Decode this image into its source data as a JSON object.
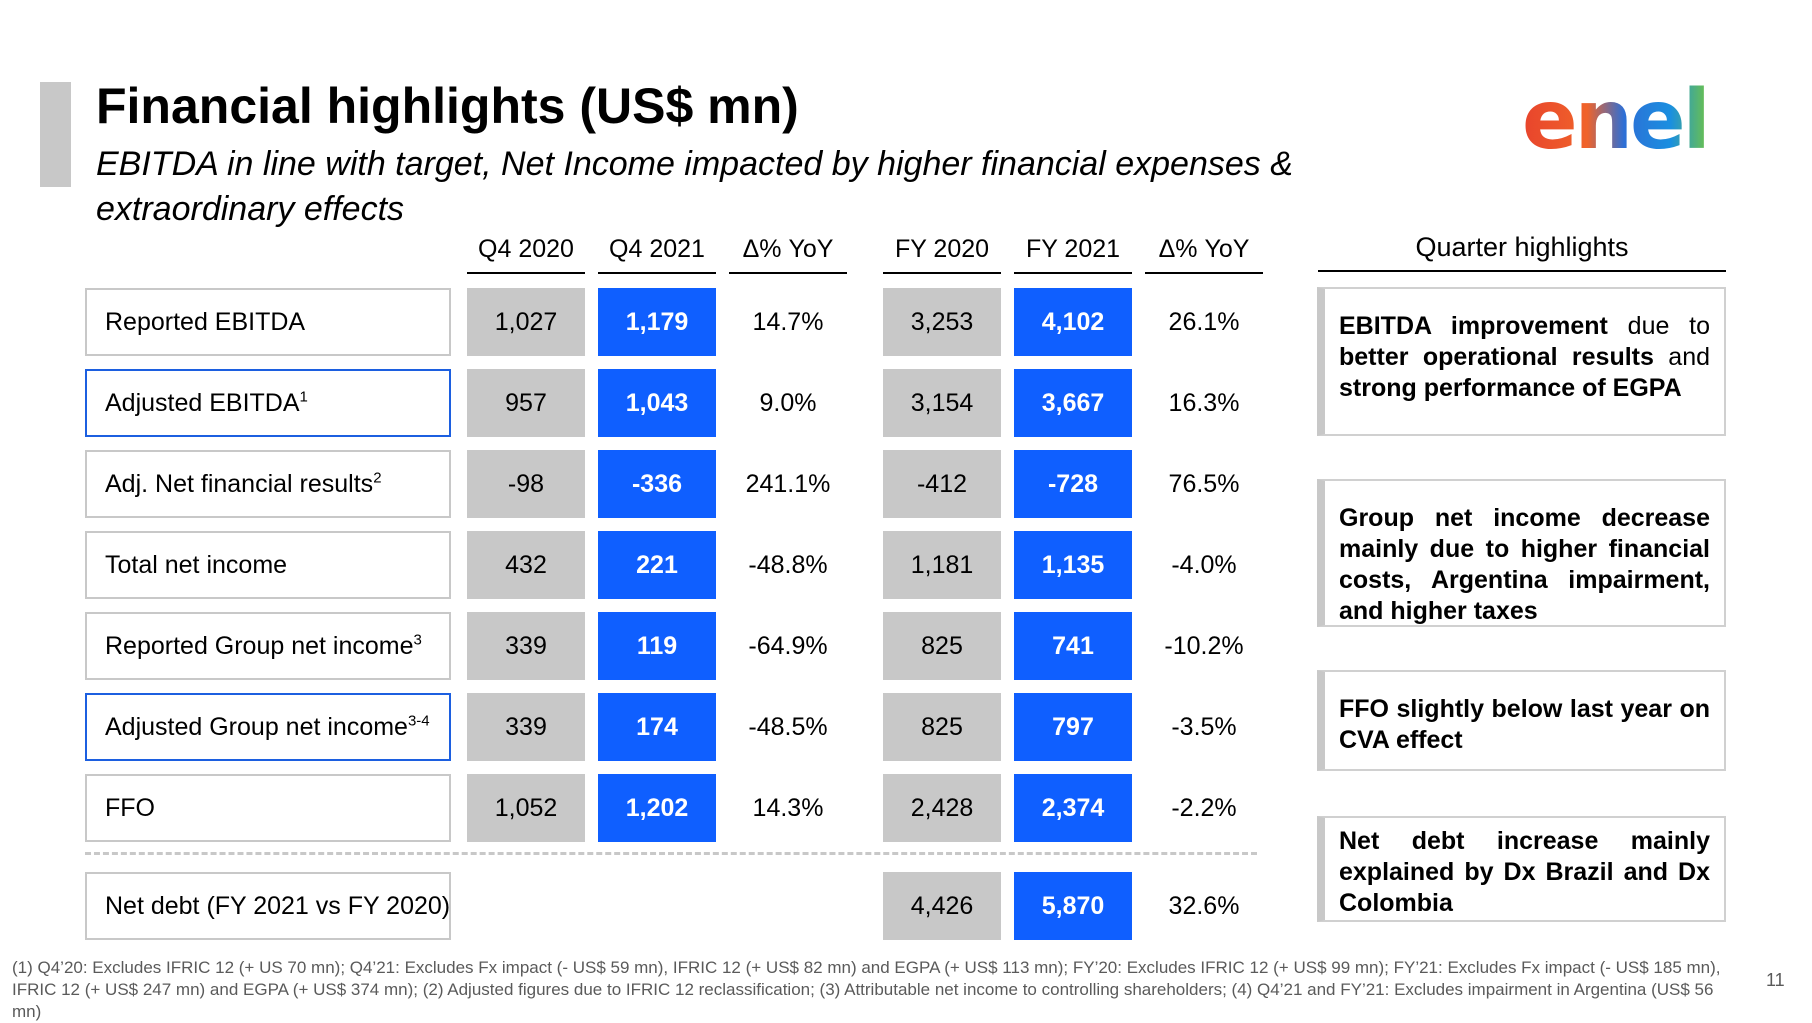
{
  "header": {
    "title": "Financial highlights (US$ mn)",
    "subtitle": "EBITDA in line with target, Net Income impacted by higher financial expenses & extraordinary effects"
  },
  "logo": {
    "text": "enel"
  },
  "columns": [
    "Q4 2020",
    "Q4 2021",
    "Δ% YoY",
    "FY 2020",
    "FY 2021",
    "Δ% YoY"
  ],
  "rows": [
    {
      "label": "Reported EBITDA",
      "sup": "",
      "q4_2020": "1,027",
      "q4_2021": "1,179",
      "q_yoy": "14.7%",
      "fy_2020": "3,253",
      "fy_2021": "4,102",
      "fy_yoy": "26.1%"
    },
    {
      "label": "Adjusted EBITDA",
      "sup": "1",
      "q4_2020": "957",
      "q4_2021": "1,043",
      "q_yoy": "9.0%",
      "fy_2020": "3,154",
      "fy_2021": "3,667",
      "fy_yoy": "16.3%"
    },
    {
      "label": "Adj. Net financial results",
      "sup": "2",
      "q4_2020": "-98",
      "q4_2021": "-336",
      "q_yoy": "241.1%",
      "fy_2020": "-412",
      "fy_2021": "-728",
      "fy_yoy": "76.5%"
    },
    {
      "label": "Total net income",
      "sup": "",
      "q4_2020": "432",
      "q4_2021": "221",
      "q_yoy": "-48.8%",
      "fy_2020": "1,181",
      "fy_2021": "1,135",
      "fy_yoy": "-4.0%"
    },
    {
      "label": "Reported Group net income",
      "sup": "3",
      "q4_2020": "339",
      "q4_2021": "119",
      "q_yoy": "-64.9%",
      "fy_2020": "825",
      "fy_2021": "741",
      "fy_yoy": "-10.2%"
    },
    {
      "label": "Adjusted Group net income",
      "sup": "3-4",
      "q4_2020": "339",
      "q4_2021": "174",
      "q_yoy": "-48.5%",
      "fy_2020": "825",
      "fy_2021": "797",
      "fy_yoy": "-3.5%"
    },
    {
      "label": "FFO",
      "sup": "",
      "q4_2020": "1,052",
      "q4_2021": "1,202",
      "q_yoy": "14.3%",
      "fy_2020": "2,428",
      "fy_2021": "2,374",
      "fy_yoy": "-2.2%"
    }
  ],
  "net_debt": {
    "label": "Net debt (FY 2021 vs FY 2020)",
    "fy_2020": "4,426",
    "fy_2021": "5,870",
    "fy_yoy": "32.6%"
  },
  "highlights": {
    "title": "Quarter highlights",
    "items": [
      {
        "bold": "EBITDA improvement",
        "rest": " due to ",
        "bold2": "better operational results",
        "rest2": " and ",
        "bold3": "strong performance of EGPA"
      },
      {
        "bold": "Group net income decrease mainly due to higher financial costs, Argentina impairment, and higher taxes"
      },
      {
        "bold": "FFO slightly below last year on CVA effect"
      },
      {
        "bold": "Net debt increase mainly explained by Dx Brazil and Dx Colombia"
      }
    ]
  },
  "footnote": "(1) Q4’20: Excludes IFRIC 12 (+ US 70 mn); Q4’21: Excludes Fx impact (- US$ 59 mn), IFRIC 12 (+ US$ 82 mn) and EGPA (+ US$ 113 mn); FY’20: Excludes IFRIC 12 (+ US$ 99 mn); FY’21: Excludes Fx impact (- US$ 185 mn), IFRIC 12 (+ US$ 247 mn) and EGPA (+ US$ 374 mn); (2) Adjusted figures due to IFRIC 12 reclassification; (3) Attributable net income to controlling shareholders; (4) Q4’21 and FY’21: Excludes impairment in Argentina (US$ 56 mn)",
  "page_number": "11",
  "colors": {
    "blue": "#0f5fff",
    "grey": "#c8c8c8",
    "border_blue": "#1c5fe0"
  }
}
